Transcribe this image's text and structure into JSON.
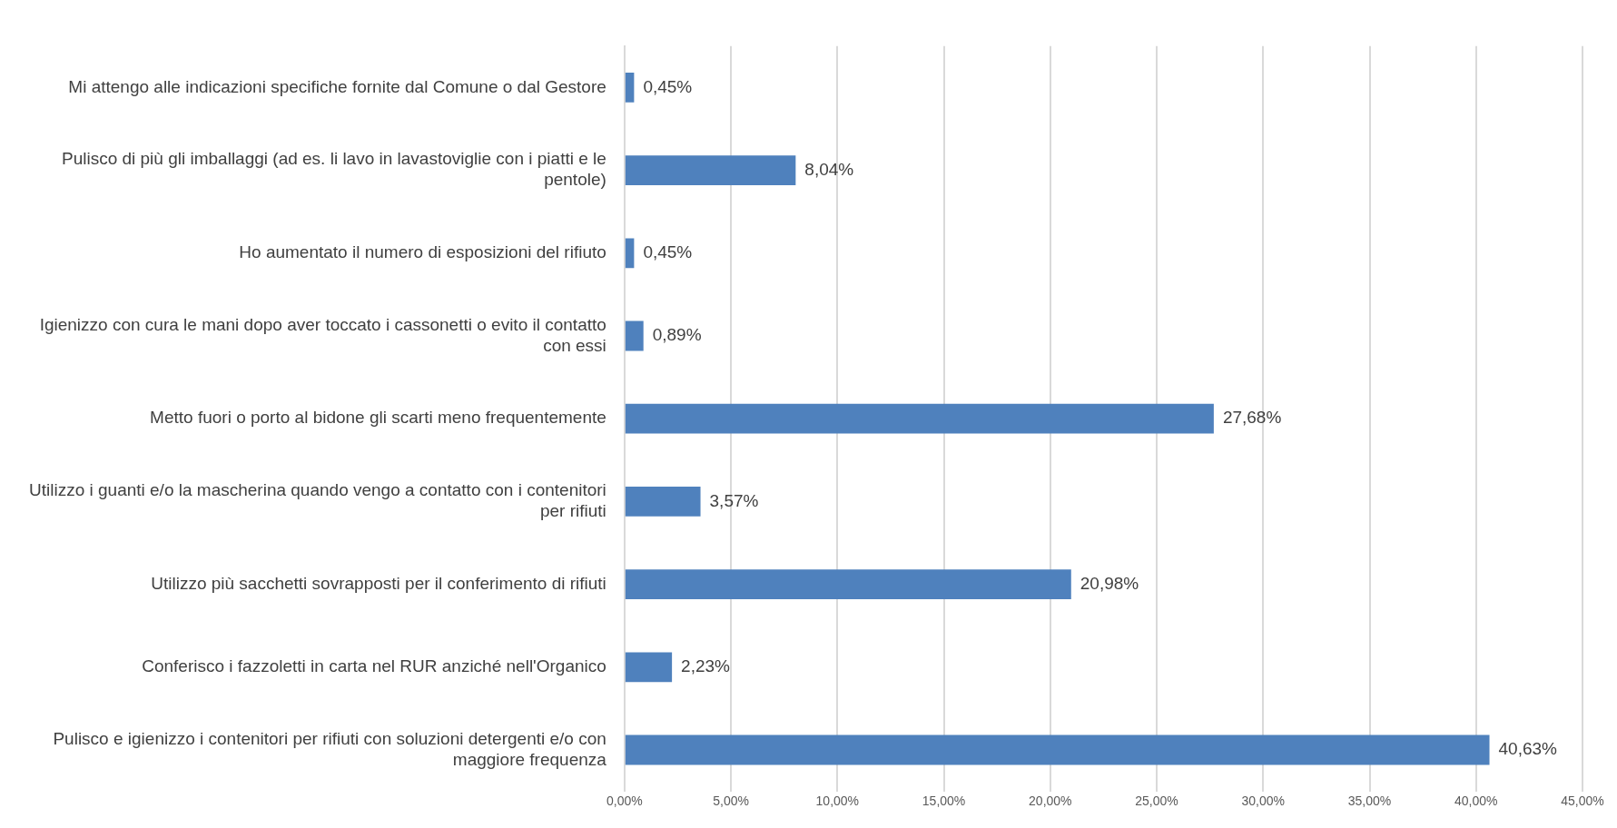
{
  "chart_data": {
    "type": "bar",
    "orientation": "horizontal",
    "categories": [
      "Mi attengo alle indicazioni specifiche fornite dal Comune o dal Gestore",
      "Pulisco di più gli imballaggi (ad es. li lavo in lavastoviglie con i piatti e le pentole)",
      "Ho aumentato il numero di esposizioni del rifiuto",
      "Igienizzo con cura le mani dopo aver toccato i cassonetti o evito il contatto con essi",
      "Metto fuori o porto al bidone gli scarti meno frequentemente",
      "Utilizzo i guanti e/o la mascherina quando vengo a contatto con i contenitori per rifiuti",
      "Utilizzo più sacchetti sovrapposti per il conferimento di rifiuti",
      "Conferisco i fazzoletti in carta nel RUR anziché nell'Organico",
      "Pulisco e igienizzo i contenitori per rifiuti con soluzioni detergenti e/o con maggiore frequenza"
    ],
    "values": [
      0.45,
      8.04,
      0.45,
      0.89,
      27.68,
      3.57,
      20.98,
      2.23,
      40.63
    ],
    "value_labels": [
      "0,45%",
      "8,04%",
      "0,45%",
      "0,89%",
      "27,68%",
      "3,57%",
      "20,98%",
      "2,23%",
      "40,63%"
    ],
    "color": "#4f81bd",
    "xlim": [
      0,
      45
    ],
    "xticks": [
      {
        "value": 0,
        "label": "0,00%"
      },
      {
        "value": 5,
        "label": "5,00%"
      },
      {
        "value": 10,
        "label": "10,00%"
      },
      {
        "value": 15,
        "label": "15,00%"
      },
      {
        "value": 20,
        "label": "20,00%"
      },
      {
        "value": 25,
        "label": "25,00%"
      },
      {
        "value": 30,
        "label": "30,00%"
      },
      {
        "value": 35,
        "label": "35,00%"
      },
      {
        "value": 40,
        "label": "40,00%"
      },
      {
        "value": 45,
        "label": "45,00%"
      }
    ],
    "grid": "x",
    "legend": false
  }
}
